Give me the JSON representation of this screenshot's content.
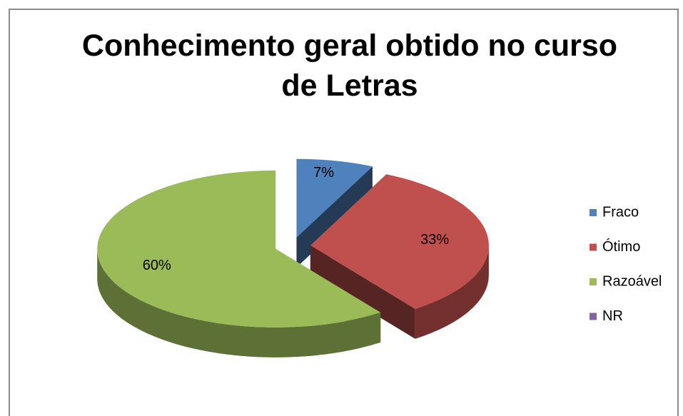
{
  "chart_data": {
    "type": "pie",
    "title": "Conhecimento geral obtido no curso de Letras",
    "categories": [
      "Fraco",
      "Ótimo",
      "Razoável",
      "NR"
    ],
    "values": [
      7,
      33,
      60,
      0
    ],
    "value_labels": [
      "7%",
      "33%",
      "60%",
      null
    ],
    "colors": [
      "#4f81bd",
      "#c0504d",
      "#9bbb59",
      "#8064a2"
    ],
    "legend": "right"
  }
}
